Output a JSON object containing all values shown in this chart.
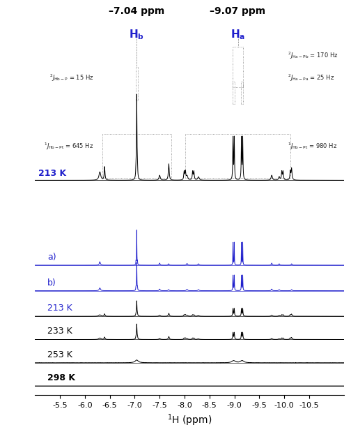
{
  "xlim_left": -5.0,
  "xlim_right": -11.2,
  "xlabel": "$^{1}$H (ppm)",
  "blue_color": "#2020cc",
  "black_color": "black",
  "peak_b_ppm": -7.04,
  "peak_a_ppm": -9.07,
  "title_b": "–7.04 ppm",
  "title_a": "–9.07 ppm",
  "spectrum_labels": [
    "a)",
    "b)",
    "213 K",
    "233 K",
    "253 K",
    "298 K"
  ],
  "spectrum_label_colors": [
    "#2020cc",
    "#2020cc",
    "#2020cc",
    "black",
    "black",
    "black"
  ],
  "spectrum_label_bold": [
    false,
    false,
    false,
    false,
    false,
    true
  ],
  "xticks": [
    -5.5,
    -6.0,
    -6.5,
    -7.0,
    -7.5,
    -8.0,
    -8.5,
    -9.0,
    -9.5,
    -10.0,
    -10.5
  ],
  "pt_dist_hb": 0.645,
  "pt_dist_ha": 0.98,
  "pb_dist_ha": 0.17,
  "pa_dist_ha": 0.025,
  "p_dist_hb": 0.015
}
